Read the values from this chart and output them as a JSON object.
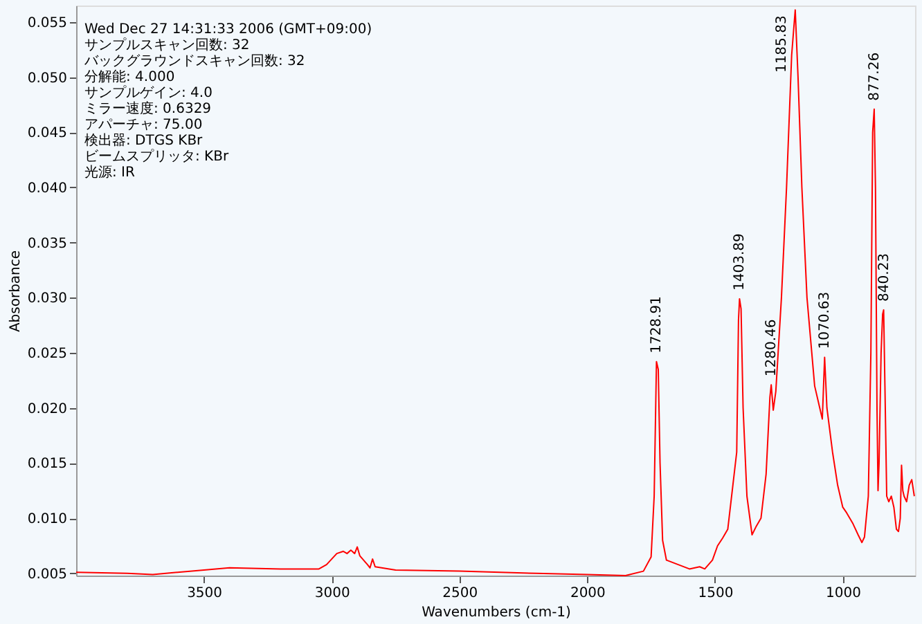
{
  "chart_data": {
    "type": "line",
    "xlabel": "Wavenumbers (cm-1)",
    "ylabel": "Absorbance",
    "xlim": [
      4000,
      717
    ],
    "ylim": [
      0.0048,
      0.0565
    ],
    "xticks": [
      3500,
      3000,
      2500,
      2000,
      1500,
      1000
    ],
    "yticks": [
      {
        "value": 0.005,
        "label": "0.005"
      },
      {
        "value": 0.01,
        "label": "0.010"
      },
      {
        "value": 0.015,
        "label": "0.015"
      },
      {
        "value": 0.02,
        "label": "0.020"
      },
      {
        "value": 0.025,
        "label": "0.025"
      },
      {
        "value": 0.03,
        "label": "0.030"
      },
      {
        "value": 0.035,
        "label": "0.035"
      },
      {
        "value": 0.04,
        "label": "0.040"
      },
      {
        "value": 0.045,
        "label": "0.045"
      },
      {
        "value": 0.05,
        "label": "0.050"
      },
      {
        "value": 0.055,
        "label": "0.055"
      }
    ],
    "grid": false,
    "marker": "none",
    "line_style": "solid",
    "series": [
      {
        "color": "#ff0000",
        "x": [
          4000,
          3800,
          3700,
          3500,
          3400,
          3200,
          3050,
          3020,
          2980,
          2955,
          2940,
          2925,
          2910,
          2900,
          2890,
          2860,
          2850,
          2840,
          2830,
          2750,
          2500,
          2200,
          2000,
          1850,
          1780,
          1750,
          1738,
          1729,
          1722,
          1715,
          1705,
          1690,
          1600,
          1560,
          1540,
          1510,
          1490,
          1470,
          1450,
          1430,
          1415,
          1408,
          1404,
          1398,
          1390,
          1375,
          1355,
          1340,
          1320,
          1300,
          1285,
          1280,
          1272,
          1262,
          1240,
          1220,
          1200,
          1186,
          1175,
          1160,
          1140,
          1110,
          1090,
          1080,
          1071,
          1062,
          1040,
          1020,
          1000,
          985,
          960,
          940,
          925,
          915,
          900,
          890,
          883,
          877,
          872,
          866,
          862,
          858,
          850,
          844,
          840,
          835,
          828,
          820,
          810,
          800,
          790,
          782,
          775,
          770,
          765,
          760,
          750,
          740,
          730,
          720
        ],
        "values": [
          0.0051,
          0.005,
          0.0049,
          0.0053,
          0.0055,
          0.0054,
          0.0054,
          0.0058,
          0.0068,
          0.007,
          0.0068,
          0.0071,
          0.0068,
          0.0074,
          0.0066,
          0.0058,
          0.0055,
          0.0063,
          0.0056,
          0.0053,
          0.0052,
          0.005,
          0.0049,
          0.0048,
          0.0052,
          0.0065,
          0.012,
          0.0242,
          0.0235,
          0.015,
          0.008,
          0.0062,
          0.0054,
          0.0056,
          0.0054,
          0.0062,
          0.0075,
          0.0082,
          0.009,
          0.013,
          0.016,
          0.028,
          0.0299,
          0.029,
          0.02,
          0.012,
          0.0085,
          0.0092,
          0.01,
          0.014,
          0.021,
          0.0221,
          0.0198,
          0.0215,
          0.03,
          0.04,
          0.052,
          0.0561,
          0.05,
          0.04,
          0.03,
          0.022,
          0.02,
          0.019,
          0.0246,
          0.02,
          0.016,
          0.013,
          0.011,
          0.0105,
          0.0095,
          0.0085,
          0.0078,
          0.0083,
          0.012,
          0.025,
          0.045,
          0.0471,
          0.04,
          0.02,
          0.0125,
          0.015,
          0.025,
          0.0285,
          0.0289,
          0.022,
          0.012,
          0.0115,
          0.012,
          0.011,
          0.009,
          0.0088,
          0.01,
          0.0148,
          0.0125,
          0.012,
          0.0115,
          0.013,
          0.0135,
          0.012
        ]
      }
    ],
    "annotations": [
      "Wed Dec 27 14:31:33 2006 (GMT+09:00)",
      "サンプルスキャン回数: 32",
      "バックグラウンドスキャン回数: 32",
      "分解能: 4.000",
      "サンプルゲイン: 4.0",
      "ミラー速度: 0.6329",
      "アパーチャ: 75.00",
      "検出器: DTGS KBr",
      "ビームスプリッタ: KBr",
      "光源: IR",
      {
        "text": "1728.91",
        "x": 1729,
        "y": 0.0242
      },
      {
        "text": "1403.89",
        "x": 1404,
        "y": 0.0299
      },
      {
        "text": "1280.46",
        "x": 1280,
        "y": 0.0221
      },
      {
        "text": "1185.83",
        "x": 1186,
        "y": 0.0561
      },
      {
        "text": "1070.63",
        "x": 1071,
        "y": 0.0246
      },
      {
        "text": "877.26",
        "x": 877,
        "y": 0.0471
      },
      {
        "text": "840.23",
        "x": 840,
        "y": 0.0289
      }
    ]
  }
}
